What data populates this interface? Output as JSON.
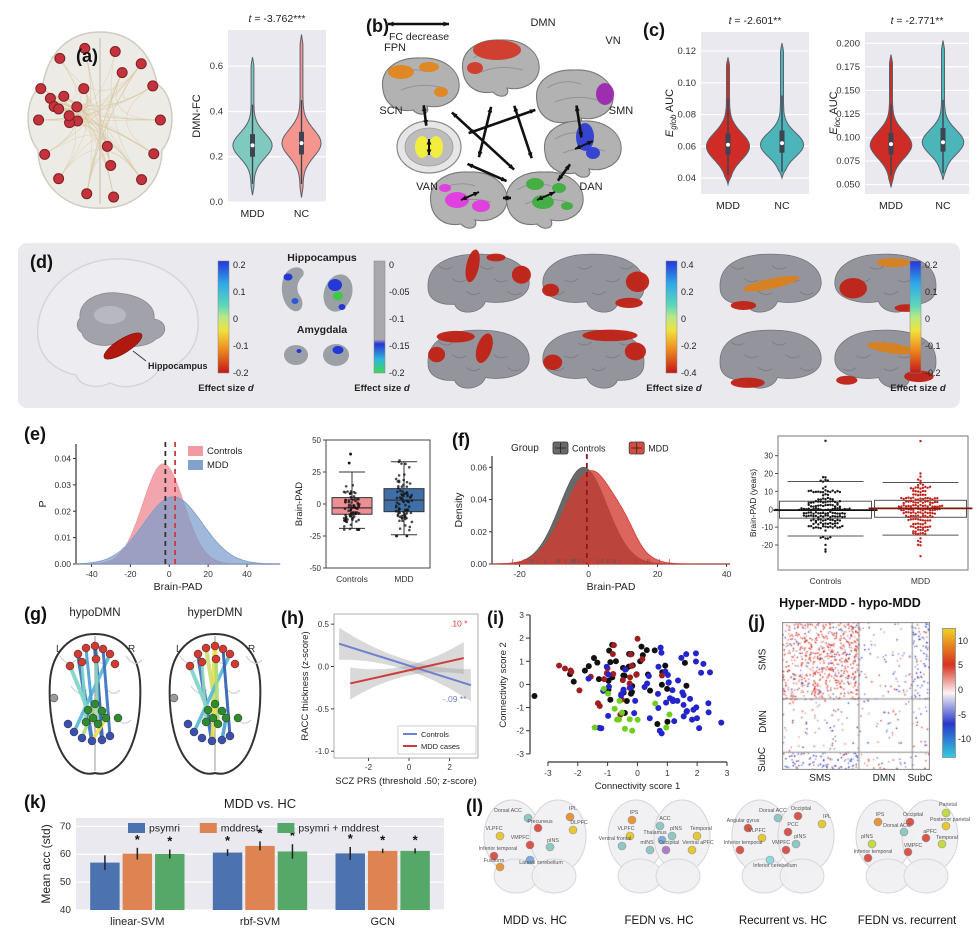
{
  "panels": {
    "a": "(a)",
    "b": "(b)",
    "c": "(c)",
    "d": "(d)",
    "e": "(e)",
    "f": "(f)",
    "g": "(g)",
    "h": "(h)",
    "i": "(i)",
    "j": "(j)",
    "k": "(k)",
    "l": "(l)"
  },
  "panel_b": {
    "legend_label": "FC decrease",
    "networks": [
      "FPN",
      "DMN",
      "VN",
      "SCN",
      "SMN",
      "VAN",
      "DAN"
    ],
    "network_colors": {
      "FPN": "#e2861d",
      "DMN": "#d23a2a",
      "VN": "#9c27b0",
      "SCN": "#f2ee3f",
      "SMN": "#2f3fd3",
      "VAN": "#e23ae2",
      "DAN": "#3fae3f"
    },
    "connections": [
      [
        "FPN",
        "SCN"
      ],
      [
        "FPN",
        "DAN"
      ],
      [
        "DMN",
        "VAN"
      ],
      [
        "DMN",
        "DAN"
      ],
      [
        "SCN",
        "VN"
      ],
      [
        "VN",
        "SMN"
      ],
      [
        "SMN",
        "DAN"
      ],
      [
        "VAN",
        "DAN"
      ],
      [
        "SCN",
        "DAN"
      ]
    ],
    "self_loops": [
      "SCN",
      "SMN",
      "VAN",
      "DAN"
    ]
  },
  "panel_d": {
    "hippocampus_annotation": "Hippocampus",
    "inset_titles": {
      "hippocampus": "Hippocampus",
      "amygdala": "Amygdala"
    },
    "colorbars": [
      {
        "ticks": [
          "0.2",
          "0.1",
          "0",
          "-0.1",
          "-0.2"
        ],
        "label": "Effect size ",
        "label_italic": "d",
        "style": "jet"
      },
      {
        "ticks": [
          "0",
          "-0.05",
          "-0.1",
          "-0.15",
          "-0.2"
        ],
        "label": "Effect size ",
        "label_italic": "d",
        "style": "gray"
      },
      {
        "ticks": [
          "0.4",
          "0.2",
          "0",
          "-0.2",
          "-0.4"
        ],
        "label": "Effect size ",
        "label_italic": "d",
        "style": "jet"
      },
      {
        "ticks": [
          "0.2",
          "0.1",
          "0",
          "-0.1",
          "-0.2"
        ],
        "label": "Effect size ",
        "label_italic": "d",
        "style": "jet"
      }
    ]
  },
  "panel_g": {
    "titles": [
      "hypoDMN",
      "hyperDMN"
    ],
    "left": "L",
    "right": "R"
  },
  "panel_l": {
    "brains": [
      {
        "caption": "MDD vs. HC",
        "regions": [
          {
            "label": "Dorsal ACC",
            "color": "#8ec7c3"
          },
          {
            "label": "IPL",
            "color": "#e6953a"
          },
          {
            "label": "Precuneus",
            "color": "#d9544a"
          },
          {
            "label": "DLPFC",
            "color": "#e6c832"
          },
          {
            "label": "VLPFC",
            "color": "#e6c832"
          },
          {
            "label": "VMPFC",
            "color": "#d9544a"
          },
          {
            "label": "pINS",
            "color": "#8ec7c3"
          },
          {
            "label": "Inferior temporal",
            "color": "#d9544a"
          },
          {
            "label": "Fusiform",
            "color": "#e6953a"
          },
          {
            "label": "Lateral cerebellum",
            "color": "#7aaede"
          }
        ]
      },
      {
        "caption": "FEDN vs. HC",
        "regions": [
          {
            "label": "IPS",
            "color": "#e6953a"
          },
          {
            "label": "ACC",
            "color": "#8ec7c3"
          },
          {
            "label": "VLPFC",
            "color": "#e6c832"
          },
          {
            "label": "Thalamus",
            "color": "#7aaede"
          },
          {
            "label": "pINS",
            "color": "#8ec7c3"
          },
          {
            "label": "Temporal",
            "color": "#e6c832"
          },
          {
            "label": "Ventral frontal",
            "color": "#8ec7c3"
          },
          {
            "label": "mINS",
            "color": "#8ec7c3"
          },
          {
            "label": "Occipital",
            "color": "#b07cc6"
          },
          {
            "label": "Ventral aPFC",
            "color": "#e6c832"
          }
        ]
      },
      {
        "caption": "Recurrent vs. HC",
        "regions": [
          {
            "label": "Dorsal ACC",
            "color": "#8ec7c3"
          },
          {
            "label": "Occipital",
            "color": "#d9544a"
          },
          {
            "label": "IPL",
            "color": "#e6c832"
          },
          {
            "label": "Angular gyrus",
            "color": "#d9544a"
          },
          {
            "label": "PCC",
            "color": "#d9544a"
          },
          {
            "label": "VLPFC",
            "color": "#e6c832"
          },
          {
            "label": "pINS",
            "color": "#8ec7c3"
          },
          {
            "label": "VMPFC",
            "color": "#d9544a"
          },
          {
            "label": "Inferior temporal",
            "color": "#d9544a"
          },
          {
            "label": "Inferior cerebellum",
            "color": "#8fd8e0"
          }
        ]
      },
      {
        "caption": "FEDN vs. recurrent",
        "regions": [
          {
            "label": "Parietal",
            "color": "#c6d943"
          },
          {
            "label": "IPS",
            "color": "#e6953a"
          },
          {
            "label": "Occipital",
            "color": "#d9544a"
          },
          {
            "label": "Posterior parietal",
            "color": "#e6c832"
          },
          {
            "label": "Dorsal ACC",
            "color": "#8ec7c3"
          },
          {
            "label": "aPFC",
            "color": "#d9544a"
          },
          {
            "label": "pINS",
            "color": "#c6d943"
          },
          {
            "label": "Temporal",
            "color": "#c6d943"
          },
          {
            "label": "VMPFC",
            "color": "#d9544a"
          },
          {
            "label": "Inferior temporal",
            "color": "#d9544a"
          }
        ]
      }
    ]
  },
  "chart_data": {
    "a_violin": {
      "type": "violin",
      "title": "t = -3.762***",
      "ylabel": "DMN-FC",
      "ylim": [
        0,
        0.76
      ],
      "yticks": [
        0,
        0.2,
        0.4,
        0.6
      ],
      "decimals": 1,
      "categories": [
        "MDD",
        "NC"
      ],
      "colors": [
        "#7fc9bf",
        "#f5968e"
      ],
      "stats": [
        {
          "lo": 0.03,
          "hi": 0.64,
          "mode": 0.25,
          "s": 0.055,
          "q1": 0.2,
          "med": 0.25,
          "q3": 0.3,
          "wlo": 0.08,
          "whi": 0.43
        },
        {
          "lo": 0.02,
          "hi": 0.74,
          "mode": 0.26,
          "s": 0.06,
          "q1": 0.21,
          "med": 0.26,
          "q3": 0.31,
          "wlo": 0.08,
          "whi": 0.45
        }
      ]
    },
    "c_glob": {
      "type": "violin",
      "title": "t = -2.601**",
      "ylabel_parts": {
        "pre": "E",
        "sub": "glob",
        "post": " AUC"
      },
      "ylim": [
        0.03,
        0.132
      ],
      "yticks": [
        0.04,
        0.06,
        0.08,
        0.1,
        0.12
      ],
      "decimals": 2,
      "categories": [
        "MDD",
        "NC"
      ],
      "colors": [
        "#cf2b27",
        "#4cb5b9"
      ],
      "stats": [
        {
          "lo": 0.036,
          "hi": 0.116,
          "mode": 0.06,
          "s": 0.0085,
          "q1": 0.055,
          "med": 0.061,
          "q3": 0.068,
          "wlo": 0.042,
          "whi": 0.09
        },
        {
          "lo": 0.04,
          "hi": 0.125,
          "mode": 0.061,
          "s": 0.0075,
          "q1": 0.056,
          "med": 0.062,
          "q3": 0.07,
          "wlo": 0.044,
          "whi": 0.092
        }
      ]
    },
    "c_loc": {
      "type": "violin",
      "title": "t = -2.771**",
      "ylabel_parts": {
        "pre": "E",
        "sub": "loc",
        "post": " AUC"
      },
      "ylim": [
        0.04,
        0.212
      ],
      "yticks": [
        0.05,
        0.075,
        0.1,
        0.125,
        0.15,
        0.175,
        0.2
      ],
      "decimals": 3,
      "categories": [
        "MDD",
        "NC"
      ],
      "colors": [
        "#cf2b27",
        "#4cb5b9"
      ],
      "stats": [
        {
          "lo": 0.047,
          "hi": 0.188,
          "mode": 0.092,
          "s": 0.014,
          "q1": 0.082,
          "med": 0.093,
          "q3": 0.105,
          "wlo": 0.06,
          "whi": 0.135
        },
        {
          "lo": 0.055,
          "hi": 0.203,
          "mode": 0.095,
          "s": 0.013,
          "q1": 0.085,
          "med": 0.095,
          "q3": 0.11,
          "wlo": 0.062,
          "whi": 0.14
        }
      ]
    },
    "e_density": {
      "type": "density",
      "ylabel": "P",
      "xlabel": "Brain-PAD",
      "xlim": [
        -48,
        57
      ],
      "xticks": [
        -40,
        -20,
        0,
        20,
        40
      ],
      "ylim": [
        0,
        0.0455
      ],
      "yticks": [
        0,
        0.01,
        0.02,
        0.03,
        0.04
      ],
      "decimals": 2,
      "series": [
        {
          "name": "Controls",
          "color": "#f0959e",
          "opacity": 0.85,
          "mean": -3,
          "sd": 10.5,
          "peak": 0.038
        },
        {
          "name": "MDD",
          "color": "#7b9dca",
          "opacity": 0.72,
          "mean": 2,
          "sd": 15,
          "peak": 0.0255
        }
      ],
      "vlines": [
        {
          "x": -2,
          "color": "#333333"
        },
        {
          "x": 3,
          "color": "#cc3b3b"
        }
      ]
    },
    "e_box": {
      "type": "box",
      "ylabel": "Brain-PAD",
      "ylim": [
        -50,
        50
      ],
      "yticks": [
        50,
        25,
        0,
        -25,
        -50
      ],
      "decimals": 0,
      "categories": [
        "Controls",
        "MDD"
      ],
      "colors": [
        "#ec8e94",
        "#3f6fa6"
      ],
      "stats": [
        {
          "wlo": -19,
          "q1": -8,
          "med": -3,
          "q3": 5,
          "whi": 25,
          "outliers": [
            32,
            39
          ]
        },
        {
          "wlo": -24,
          "q1": -6,
          "med": 3,
          "q3": 12,
          "whi": 33,
          "outliers": []
        }
      ],
      "n_points": 85,
      "seed": 11
    },
    "f_density": {
      "type": "density",
      "legend_title": "Group",
      "ylabel": "Density",
      "xlabel": "Brain-PAD",
      "xlim": [
        -28,
        41
      ],
      "xticks": [
        -20,
        0,
        20,
        40
      ],
      "ylim": [
        0,
        0.067
      ],
      "yticks": [
        0,
        0.02,
        0.04,
        0.06
      ],
      "decimals": 2,
      "series": [
        {
          "name": "Controls",
          "color": "#595959",
          "opacity": 0.9,
          "mean": -1.5,
          "sd": 6.8,
          "peak": 0.06
        },
        {
          "name": "MDD",
          "color": "#d23b2f",
          "opacity": 0.78,
          "mean": 0.8,
          "sd": 7.6,
          "peak": 0.058,
          "bump": {
            "mean": 11,
            "sd": 3,
            "peak": 0.006
          }
        }
      ],
      "vlines": [
        {
          "x": -0.5,
          "color": "#8b1a1a"
        }
      ],
      "rug": true,
      "seed": 23
    },
    "f_swarm": {
      "type": "beeswarm",
      "ylabel": "Brain-PAD (years)",
      "ylim": [
        -34,
        41
      ],
      "yticks": [
        30,
        20,
        10,
        0,
        -10,
        -20
      ],
      "decimals": 0,
      "categories": [
        "Controls",
        "MDD"
      ],
      "colors": [
        "#1a1a1a",
        "#c0251c"
      ],
      "stats": [
        {
          "q1": -5,
          "med": -0.5,
          "q3": 4.5,
          "wlo": -15,
          "whi": 15.5,
          "top": 38,
          "bottom": -25
        },
        {
          "q1": -4.5,
          "med": 0.5,
          "q3": 5,
          "wlo": -14.5,
          "whi": 15,
          "top": 38,
          "bottom": -27
        }
      ],
      "n_points": 165,
      "spread": 8.3,
      "seed": 5
    },
    "h_regression": {
      "type": "regression",
      "ylabel": "RACC thickness (z-score)",
      "xlabel": "SCZ PRS (threshold .50; z-score)",
      "xlim": [
        -3.7,
        3.4
      ],
      "ylim": [
        -1.08,
        0.62
      ],
      "yticks": [
        0.5,
        0.0,
        -0.5,
        -1.0
      ],
      "xticks": [
        -2,
        0,
        2
      ],
      "lines": [
        {
          "name": "Controls",
          "color": "#7080cf",
          "x1": -3.45,
          "y1": 0.27,
          "x2": 3.05,
          "y2": -0.22
        },
        {
          "name": "MDD cases",
          "color": "#cf3b3b",
          "x1": -2.9,
          "y1": -0.2,
          "x2": 2.7,
          "y2": 0.1
        }
      ],
      "annotations": [
        {
          "text": ".10 *",
          "color": "#cf3b3b",
          "x": 2.45,
          "y": 0.47
        },
        {
          "text": "-.09 **",
          "color": "#7080cf",
          "x": 2.25,
          "y": -0.42
        }
      ],
      "band_color": "#9a9a9a",
      "band_opacity": 0.38
    },
    "i_scatter": {
      "type": "scatter",
      "xlabel": "Connectivity score 1",
      "ylabel": "Connectivity score 2",
      "xlim": [
        -3.6,
        3.1
      ],
      "ylim": [
        -3.35,
        3.3
      ],
      "xticks": [
        -3,
        -2,
        -1,
        0,
        1,
        2,
        3
      ],
      "yticks": [
        -3,
        -2,
        -1,
        0,
        1,
        2,
        3
      ],
      "decimals": 0,
      "groups": [
        {
          "color": "#111111",
          "n": 44,
          "cx": -0.35,
          "cy": 0.5,
          "sx": 1.0,
          "sy": 0.8
        },
        {
          "color": "#9e1f1f",
          "n": 28,
          "cx": -0.9,
          "cy": 0.25,
          "sx": 0.85,
          "sy": 0.75
        },
        {
          "color": "#2324cc",
          "n": 60,
          "cx": 0.75,
          "cy": -0.5,
          "sx": 1.05,
          "sy": 0.95
        },
        {
          "color": "#6fce1f",
          "n": 15,
          "cx": -0.2,
          "cy": -1.1,
          "sx": 1.0,
          "sy": 0.95
        }
      ],
      "outliers": [
        {
          "x": -3.45,
          "y": -0.5,
          "color": "#111111"
        }
      ],
      "seed": 41
    },
    "j_matrix": {
      "type": "heatmap",
      "title": "Hyper-MDD - hypo-MDD",
      "row_labels": [
        "SMS",
        "DMN",
        "SubC"
      ],
      "col_labels": [
        "SMS",
        "DMN",
        "SubC"
      ],
      "block_fracs": [
        0.52,
        0.88,
        1.0
      ],
      "colorbar_ticks": [
        "10",
        "5",
        "0",
        "-5",
        "-10"
      ],
      "pos_color": "#cc2418",
      "neg_color": "#2231c8",
      "blocks": [
        [
          0.34,
          0.9
        ],
        [
          0.05,
          0.5
        ],
        [
          0.2,
          0.15
        ],
        [
          0.05,
          0.5
        ],
        [
          0.035,
          0.5
        ],
        [
          0.05,
          0.6
        ],
        [
          0.22,
          0.2
        ],
        [
          0.07,
          0.65
        ],
        [
          0.05,
          0.5
        ]
      ],
      "seed": 77
    },
    "k_bars": {
      "type": "bar",
      "title": "MDD vs. HC",
      "ylabel": "Mean acc (std)",
      "ylim": [
        40,
        73
      ],
      "yticks": [
        40,
        50,
        60,
        70
      ],
      "decimals": 0,
      "categories": [
        "linear-SVM",
        "rbf-SVM",
        "GCN"
      ],
      "series": [
        {
          "name": "psymri",
          "color": "#4c72b0",
          "values": [
            57.0,
            60.6,
            60.3
          ],
          "errors": [
            2.6,
            1.2,
            2.3
          ],
          "stars": [
            false,
            true,
            true
          ]
        },
        {
          "name": "mddrest",
          "color": "#dd8452",
          "values": [
            60.2,
            63.0,
            61.2
          ],
          "errors": [
            2.1,
            1.6,
            0.8
          ],
          "stars": [
            true,
            true,
            true
          ]
        },
        {
          "name": "psymri + mddrest",
          "color": "#55a868",
          "values": [
            60.1,
            61.0,
            61.2
          ],
          "errors": [
            1.6,
            2.6,
            0.9
          ],
          "stars": [
            true,
            true,
            true
          ]
        }
      ],
      "star_symbol": "*"
    }
  }
}
